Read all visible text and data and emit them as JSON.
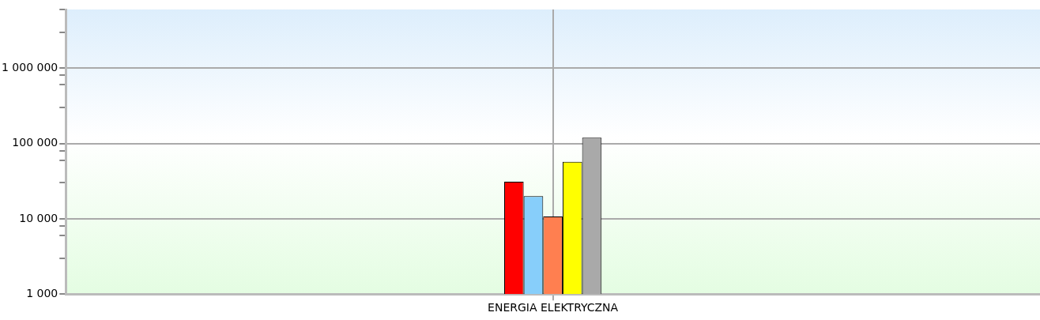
{
  "chart_data": {
    "type": "bar",
    "categories": [
      "ENERGIA ELEKTRYCZNA"
    ],
    "series": [
      {
        "color": "#ff0000",
        "values": [
          31000
        ]
      },
      {
        "color": "#87cefa",
        "values": [
          20000
        ]
      },
      {
        "color": "#ff7f50",
        "values": [
          10700
        ]
      },
      {
        "color": "#ffff00",
        "values": [
          57000
        ]
      },
      {
        "color": "#a9a9a9",
        "values": [
          119000
        ]
      }
    ],
    "log": true,
    "ylim": [
      1000,
      6000000
    ],
    "yticks": [
      {
        "value": 1000,
        "label": "1 000"
      },
      {
        "value": 3000,
        "label": null
      },
      {
        "value": 6000,
        "label": null
      },
      {
        "value": 8000,
        "label": null
      },
      {
        "value": 10000,
        "label": "10 000"
      },
      {
        "value": 30000,
        "label": null
      },
      {
        "value": 60000,
        "label": null
      },
      {
        "value": 80000,
        "label": null
      },
      {
        "value": 100000,
        "label": "100 000"
      },
      {
        "value": 300000,
        "label": null
      },
      {
        "value": 600000,
        "label": null
      },
      {
        "value": 800000,
        "label": null
      },
      {
        "value": 1000000,
        "label": "1 000 000"
      },
      {
        "value": 3000000,
        "label": null
      },
      {
        "value": 6000000,
        "label": null
      }
    ],
    "grid": true,
    "legend": false
  }
}
